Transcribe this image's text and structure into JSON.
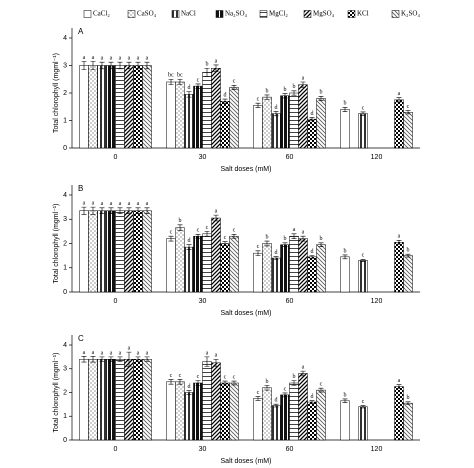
{
  "chart_data": [
    {
      "type": "bar",
      "panel": "A",
      "ylabel": "Total chlorophyll (mgml⁻¹)",
      "xlabel": "Salt doses (mM)",
      "categories": [
        "0",
        "30",
        "60",
        "120"
      ],
      "ylim": [
        0,
        4
      ],
      "yticks": [
        0,
        1,
        2,
        3,
        4
      ],
      "series": [
        {
          "name": "CaCl₂",
          "color": "#ffffff",
          "pattern": "none",
          "values": [
            3.0,
            2.4,
            1.55,
            1.4
          ],
          "errors": [
            0.15,
            0.1,
            0.08,
            0.08
          ],
          "letters": [
            "a",
            "bc",
            "c",
            "b"
          ]
        },
        {
          "name": "CaSO₄",
          "color": "#555555",
          "pattern": "dots",
          "values": [
            3.0,
            2.4,
            1.85,
            null
          ],
          "errors": [
            0.15,
            0.1,
            0.08,
            null
          ],
          "letters": [
            "a",
            "bc",
            "b",
            null
          ]
        },
        {
          "name": "NaCl",
          "color": "#333333",
          "pattern": "vertical",
          "values": [
            3.0,
            1.95,
            1.25,
            1.25
          ],
          "errors": [
            0.12,
            0.1,
            0.08,
            0.06
          ],
          "letters": [
            "a",
            "d",
            "d",
            "c"
          ]
        },
        {
          "name": "Na₂SO₄",
          "color": "#111111",
          "pattern": "wide-vertical",
          "values": [
            3.0,
            2.25,
            1.9,
            null
          ],
          "errors": [
            0.12,
            0.08,
            0.08,
            null
          ],
          "letters": [
            "a",
            "c",
            "b",
            null
          ]
        },
        {
          "name": "MgCl₂",
          "color": "#444444",
          "pattern": "horizontal",
          "values": [
            3.0,
            2.75,
            2.0,
            null
          ],
          "errors": [
            0.12,
            0.15,
            0.08,
            null
          ],
          "letters": [
            "a",
            "b",
            "b",
            null
          ]
        },
        {
          "name": "MgSO₄",
          "color": "#000000",
          "pattern": "diagonal",
          "values": [
            3.0,
            2.9,
            2.3,
            null
          ],
          "errors": [
            0.12,
            0.12,
            0.1,
            null
          ],
          "letters": [
            "a",
            "a",
            "a",
            null
          ]
        },
        {
          "name": "KCl",
          "color": "#000000",
          "pattern": "checker",
          "values": [
            3.0,
            1.7,
            1.05,
            1.75
          ],
          "errors": [
            0.12,
            0.08,
            0.06,
            0.08
          ],
          "letters": [
            "a",
            "d",
            "d",
            "a"
          ]
        },
        {
          "name": "K₂SO₄",
          "color": "#555555",
          "pattern": "back-diagonal",
          "values": [
            3.0,
            2.2,
            1.8,
            1.3
          ],
          "errors": [
            0.12,
            0.08,
            0.08,
            0.06
          ],
          "letters": [
            "a",
            "c",
            "b",
            "c"
          ]
        }
      ]
    },
    {
      "type": "bar",
      "panel": "B",
      "ylabel": "Total chlorophyll (mgml⁻¹)",
      "xlabel": "Salt doses (mM)",
      "categories": [
        "0",
        "30",
        "60",
        "120"
      ],
      "ylim": [
        0,
        4
      ],
      "yticks": [
        0,
        1,
        2,
        3,
        4
      ],
      "series": [
        {
          "name": "CaCl₂",
          "color": "#ffffff",
          "pattern": "none",
          "values": [
            3.35,
            2.2,
            1.6,
            1.45
          ],
          "errors": [
            0.15,
            0.1,
            0.1,
            0.08
          ],
          "letters": [
            "a",
            "c",
            "c",
            "b"
          ]
        },
        {
          "name": "CaSO₄",
          "color": "#555555",
          "pattern": "dots",
          "values": [
            3.35,
            2.65,
            2.0,
            null
          ],
          "errors": [
            0.15,
            0.12,
            0.1,
            null
          ],
          "letters": [
            "a",
            "b",
            "b",
            null
          ]
        },
        {
          "name": "NaCl",
          "color": "#333333",
          "pattern": "vertical",
          "values": [
            3.35,
            1.85,
            1.4,
            1.3
          ],
          "errors": [
            0.12,
            0.1,
            0.06,
            0.05
          ],
          "letters": [
            "a",
            "d",
            "d",
            "c"
          ]
        },
        {
          "name": "Na₂SO₄",
          "color": "#111111",
          "pattern": "wide-vertical",
          "values": [
            3.35,
            2.3,
            1.95,
            null
          ],
          "errors": [
            0.12,
            0.08,
            0.08,
            null
          ],
          "letters": [
            "a",
            "c",
            "b",
            null
          ]
        },
        {
          "name": "MgCl₂",
          "color": "#444444",
          "pattern": "horizontal",
          "values": [
            3.35,
            2.4,
            2.3,
            null
          ],
          "errors": [
            0.12,
            0.1,
            0.1,
            null
          ],
          "letters": [
            "a",
            "c",
            "a",
            null
          ]
        },
        {
          "name": "MgSO₄",
          "color": "#000000",
          "pattern": "diagonal",
          "values": [
            3.35,
            3.05,
            2.2,
            null
          ],
          "errors": [
            0.12,
            0.12,
            0.1,
            null
          ],
          "letters": [
            "a",
            "a",
            "a",
            null
          ]
        },
        {
          "name": "KCl",
          "color": "#000000",
          "pattern": "checker",
          "values": [
            3.35,
            2.0,
            1.45,
            2.05
          ],
          "errors": [
            0.12,
            0.08,
            0.06,
            0.08
          ],
          "letters": [
            "a",
            "c",
            "d",
            "a"
          ]
        },
        {
          "name": "K₂SO₄",
          "color": "#555555",
          "pattern": "back-diagonal",
          "values": [
            3.35,
            2.3,
            1.95,
            1.5
          ],
          "errors": [
            0.12,
            0.08,
            0.08,
            0.06
          ],
          "letters": [
            "a",
            "c",
            "b",
            "b"
          ]
        }
      ]
    },
    {
      "type": "bar",
      "panel": "C",
      "ylabel": "Total chlorophyll (mgml⁻¹)",
      "xlabel": "Salt doses (mM)",
      "categories": [
        "0",
        "30",
        "60",
        "120"
      ],
      "ylim": [
        0,
        4
      ],
      "yticks": [
        0,
        1,
        2,
        3,
        4
      ],
      "series": [
        {
          "name": "CaCl₂",
          "color": "#ffffff",
          "pattern": "none",
          "values": [
            3.4,
            2.45,
            1.75,
            1.65
          ],
          "errors": [
            0.12,
            0.1,
            0.08,
            0.08
          ],
          "letters": [
            "a",
            "c",
            "c",
            "b"
          ]
        },
        {
          "name": "CaSO₄",
          "color": "#555555",
          "pattern": "dots",
          "values": [
            3.4,
            2.45,
            2.2,
            null
          ],
          "errors": [
            0.12,
            0.1,
            0.1,
            null
          ],
          "letters": [
            "a",
            "c",
            "b",
            null
          ]
        },
        {
          "name": "NaCl",
          "color": "#333333",
          "pattern": "vertical",
          "values": [
            3.4,
            2.0,
            1.45,
            1.4
          ],
          "errors": [
            0.1,
            0.08,
            0.06,
            0.05
          ],
          "letters": [
            "a",
            "d",
            "d",
            "c"
          ]
        },
        {
          "name": "Na₂SO₄",
          "color": "#111111",
          "pattern": "wide-vertical",
          "values": [
            3.4,
            2.4,
            1.9,
            null
          ],
          "errors": [
            0.1,
            0.1,
            0.08,
            null
          ],
          "letters": [
            "a",
            "c",
            "c",
            null
          ]
        },
        {
          "name": "MgCl₂",
          "color": "#444444",
          "pattern": "horizontal",
          "values": [
            3.4,
            3.3,
            2.4,
            null
          ],
          "errors": [
            0.1,
            0.2,
            0.1,
            null
          ],
          "letters": [
            "a",
            "a",
            "b",
            null
          ]
        },
        {
          "name": "MgSO₄",
          "color": "#000000",
          "pattern": "diagonal",
          "values": [
            3.4,
            3.25,
            2.8,
            null
          ],
          "errors": [
            0.3,
            0.15,
            0.1,
            null
          ],
          "letters": [
            "a",
            "a",
            "a",
            null
          ]
        },
        {
          "name": "KCl",
          "color": "#000000",
          "pattern": "checker",
          "values": [
            3.4,
            2.4,
            1.6,
            2.25
          ],
          "errors": [
            0.1,
            0.08,
            0.06,
            0.08
          ],
          "letters": [
            "a",
            "c",
            "d",
            "a"
          ]
        },
        {
          "name": "K₂SO₄",
          "color": "#555555",
          "pattern": "back-diagonal",
          "values": [
            3.4,
            2.4,
            2.1,
            1.55
          ],
          "errors": [
            0.1,
            0.08,
            0.08,
            0.06
          ],
          "letters": [
            "a",
            "c",
            "c",
            "b"
          ]
        }
      ]
    }
  ]
}
